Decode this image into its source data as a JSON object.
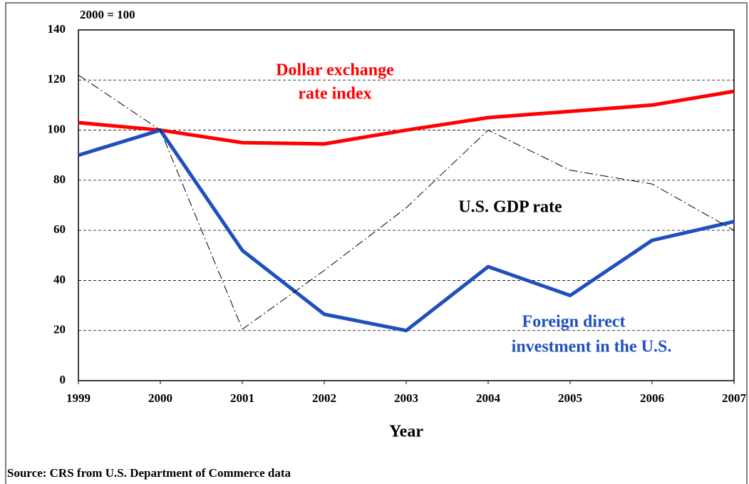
{
  "chart_data": {
    "type": "line",
    "y_unit_label": "2000 = 100",
    "x_label": "Year",
    "source": "Source: CRS from U.S. Department of Commerce data",
    "x": [
      1999,
      2000,
      2001,
      2002,
      2003,
      2004,
      2005,
      2006,
      2007
    ],
    "xlim": [
      1999,
      2007
    ],
    "xticks": [
      1999,
      2000,
      2001,
      2002,
      2003,
      2004,
      2005,
      2006,
      2007
    ],
    "ylim": [
      0,
      140
    ],
    "yticks": [
      0,
      20,
      40,
      60,
      80,
      100,
      120,
      140
    ],
    "grid": true,
    "series": [
      {
        "name": "Dollar exchange rate index",
        "label_lines": [
          "Dollar exchange",
          "rate index"
        ],
        "color": "#ff0000",
        "values": [
          103,
          100,
          95,
          94.5,
          100,
          105,
          107.5,
          110,
          115.5
        ]
      },
      {
        "name": "Foreign direct investment in the U.S.",
        "label_lines": [
          "Foreign direct",
          "investment in the U.S."
        ],
        "color": "#1f4fbf",
        "values": [
          90,
          100,
          52,
          26.5,
          20,
          45.5,
          34,
          56,
          63.5
        ]
      },
      {
        "name": "U.S. GDP rate",
        "label_lines": [
          "U.S. GDP rate"
        ],
        "color": "#000000",
        "values": [
          122,
          100,
          20.5,
          44,
          69,
          100,
          84,
          78.5,
          60
        ]
      }
    ]
  }
}
